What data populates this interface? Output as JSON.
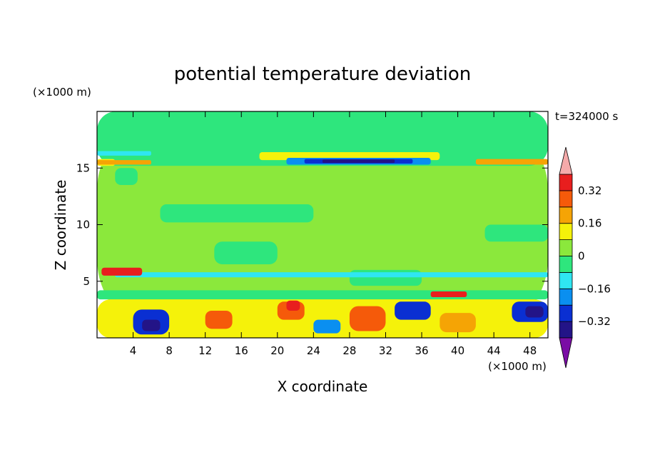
{
  "chart_data": {
    "type": "heatmap",
    "title": "potential temperature deviation",
    "xlabel": "X coordinate",
    "ylabel": "Z coordinate",
    "x_unit": "(×1000 m)",
    "y_unit": "(×1000 m)",
    "time_label": "t=324000 s",
    "xlim": [
      0,
      50
    ],
    "ylim": [
      0,
      20
    ],
    "x_ticks": [
      4,
      8,
      12,
      16,
      20,
      24,
      28,
      32,
      36,
      40,
      44,
      48
    ],
    "y_ticks": [
      5,
      10,
      15
    ],
    "colorbar": {
      "levels": [
        -0.4,
        -0.32,
        -0.24,
        -0.16,
        -0.08,
        0,
        0.08,
        0.16,
        0.24,
        0.32,
        0.4
      ],
      "tick_labels": [
        "-0.32",
        "-0.16",
        "0",
        "0.16",
        "0.32"
      ],
      "tick_values": [
        -0.32,
        -0.16,
        0,
        0.16,
        0.32
      ],
      "colors": [
        "#7a0da5",
        "#231487",
        "#0a2fd2",
        "#0a8ff0",
        "#2fe6f2",
        "#2ee67d",
        "#8be83c",
        "#f5f20a",
        "#f5a405",
        "#f55a0a",
        "#e81e1e",
        "#f5aaaa"
      ],
      "extend": "both"
    },
    "field_regions": [
      {
        "level": 0.04,
        "x": [
          0,
          50
        ],
        "z": [
          0,
          20
        ]
      },
      {
        "level": -0.04,
        "x": [
          0,
          50
        ],
        "z": [
          15.2,
          20
        ]
      },
      {
        "level": -0.04,
        "x": [
          2,
          4.5
        ],
        "z": [
          13.5,
          15
        ]
      },
      {
        "level": -0.04,
        "x": [
          7,
          24
        ],
        "z": [
          10.2,
          11.8
        ]
      },
      {
        "level": -0.04,
        "x": [
          13,
          20
        ],
        "z": [
          6.5,
          8.5
        ]
      },
      {
        "level": -0.04,
        "x": [
          28,
          36
        ],
        "z": [
          4.6,
          6
        ]
      },
      {
        "level": -0.04,
        "x": [
          43,
          50
        ],
        "z": [
          8.5,
          10
        ]
      },
      {
        "level": -0.04,
        "x": [
          0,
          50
        ],
        "z": [
          3.4,
          4.2
        ]
      },
      {
        "level": -0.12,
        "x": [
          2,
          50
        ],
        "z": [
          5.35,
          5.8
        ]
      },
      {
        "level": -0.12,
        "x": [
          0,
          6
        ],
        "z": [
          16.1,
          16.5
        ]
      },
      {
        "level": 0.12,
        "x": [
          0,
          2
        ],
        "z": [
          15.2,
          15.8
        ]
      },
      {
        "level": 0.2,
        "x": [
          0,
          6
        ],
        "z": [
          15.3,
          15.7
        ]
      },
      {
        "level": 0.12,
        "x": [
          18,
          38
        ],
        "z": [
          15.7,
          16.4
        ]
      },
      {
        "level": -0.2,
        "x": [
          21,
          37
        ],
        "z": [
          15.3,
          15.9
        ]
      },
      {
        "level": -0.28,
        "x": [
          23,
          35
        ],
        "z": [
          15.4,
          15.8
        ]
      },
      {
        "level": -0.36,
        "x": [
          25,
          33
        ],
        "z": [
          15.45,
          15.75
        ]
      },
      {
        "level": 0.2,
        "x": [
          42,
          50
        ],
        "z": [
          15.3,
          15.8
        ]
      },
      {
        "level": 0.36,
        "x": [
          0.5,
          5
        ],
        "z": [
          5.5,
          6.2
        ]
      },
      {
        "level": 0.36,
        "x": [
          37,
          41
        ],
        "z": [
          3.6,
          4.1
        ]
      },
      {
        "level": 0.12,
        "x": [
          0,
          50
        ],
        "z": [
          0,
          3.4
        ]
      },
      {
        "level": -0.28,
        "x": [
          4,
          8
        ],
        "z": [
          0.3,
          2.5
        ]
      },
      {
        "level": -0.36,
        "x": [
          5,
          7
        ],
        "z": [
          0.6,
          1.6
        ]
      },
      {
        "level": 0.28,
        "x": [
          12,
          15
        ],
        "z": [
          0.8,
          2.4
        ]
      },
      {
        "level": 0.28,
        "x": [
          20,
          23
        ],
        "z": [
          1.6,
          3.2
        ]
      },
      {
        "level": 0.36,
        "x": [
          21,
          22.5
        ],
        "z": [
          2.4,
          3.3
        ]
      },
      {
        "level": -0.2,
        "x": [
          24,
          27
        ],
        "z": [
          0.4,
          1.6
        ]
      },
      {
        "level": 0.28,
        "x": [
          28,
          32
        ],
        "z": [
          0.6,
          2.8
        ]
      },
      {
        "level": -0.28,
        "x": [
          33,
          37
        ],
        "z": [
          1.6,
          3.2
        ]
      },
      {
        "level": 0.2,
        "x": [
          38,
          42
        ],
        "z": [
          0.5,
          2.2
        ]
      },
      {
        "level": -0.28,
        "x": [
          46,
          50
        ],
        "z": [
          1.4,
          3.2
        ]
      },
      {
        "level": -0.36,
        "x": [
          47.5,
          49.5
        ],
        "z": [
          1.8,
          2.8
        ]
      }
    ]
  }
}
